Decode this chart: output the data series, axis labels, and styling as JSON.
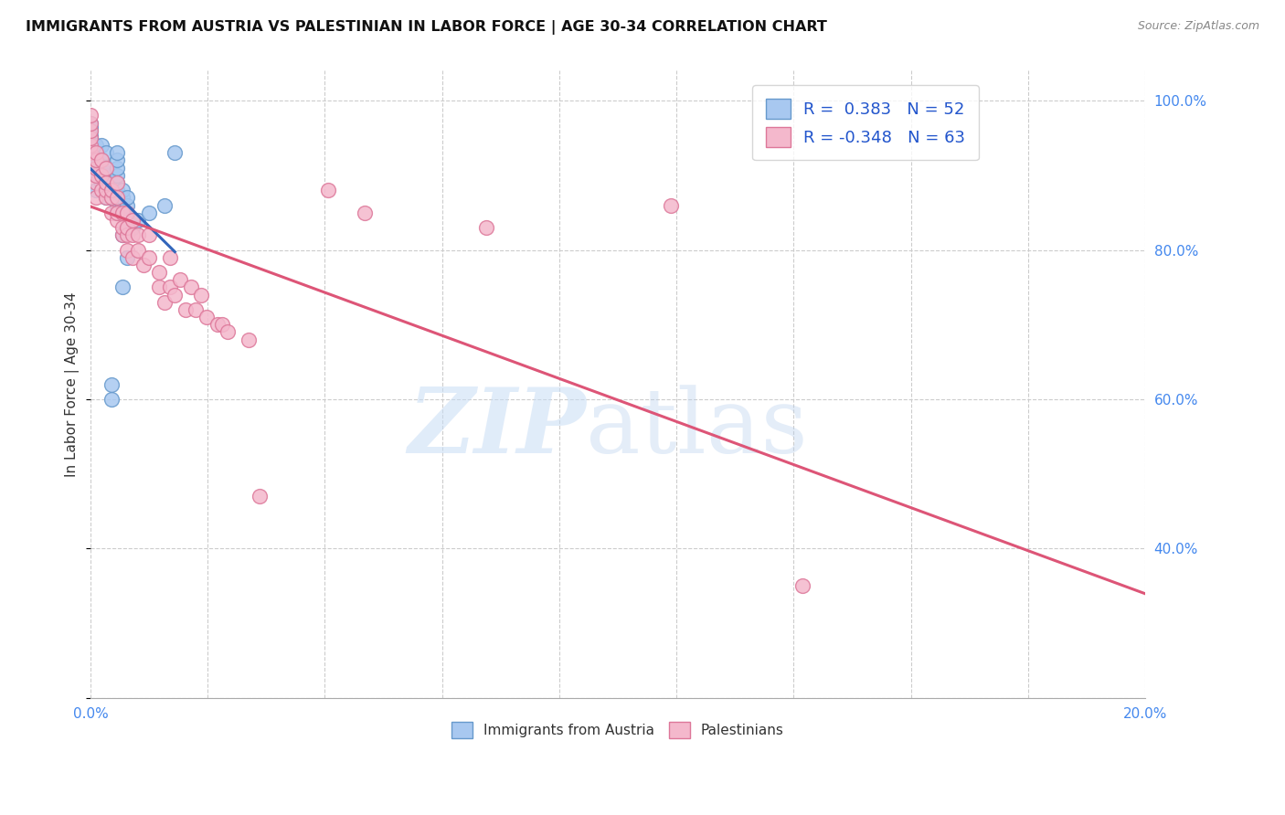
{
  "title": "IMMIGRANTS FROM AUSTRIA VS PALESTINIAN IN LABOR FORCE | AGE 30-34 CORRELATION CHART",
  "source": "Source: ZipAtlas.com",
  "ylabel": "In Labor Force | Age 30-34",
  "xmin": 0.0,
  "xmax": 0.2,
  "ymin": 0.2,
  "ymax": 1.04,
  "austria_color": "#a8c8f0",
  "austria_edge": "#6699cc",
  "palestinian_color": "#f4b8cc",
  "palestinian_edge": "#dd7799",
  "austria_R": 0.383,
  "austria_N": 52,
  "palestinian_R": -0.348,
  "palestinian_N": 63,
  "legend_label_austria": "Immigrants from Austria",
  "legend_label_palestinian": "Palestinians",
  "austria_x": [
    0.0,
    0.0,
    0.0,
    0.0,
    0.0,
    0.0,
    0.0,
    0.0,
    0.001,
    0.001,
    0.001,
    0.001,
    0.001,
    0.001,
    0.002,
    0.002,
    0.002,
    0.002,
    0.003,
    0.003,
    0.003,
    0.003,
    0.003,
    0.003,
    0.004,
    0.004,
    0.004,
    0.004,
    0.005,
    0.005,
    0.005,
    0.005,
    0.005,
    0.005,
    0.005,
    0.005,
    0.005,
    0.006,
    0.006,
    0.006,
    0.006,
    0.006,
    0.006,
    0.007,
    0.007,
    0.007,
    0.007,
    0.008,
    0.009,
    0.011,
    0.014,
    0.016
  ],
  "austria_y": [
    0.91,
    0.93,
    0.94,
    0.95,
    0.953,
    0.96,
    0.965,
    0.97,
    0.88,
    0.9,
    0.902,
    0.92,
    0.923,
    0.94,
    0.89,
    0.91,
    0.92,
    0.94,
    0.87,
    0.88,
    0.89,
    0.9,
    0.91,
    0.93,
    0.6,
    0.62,
    0.87,
    0.89,
    0.85,
    0.86,
    0.87,
    0.88,
    0.89,
    0.9,
    0.91,
    0.92,
    0.93,
    0.75,
    0.82,
    0.85,
    0.86,
    0.87,
    0.88,
    0.79,
    0.83,
    0.86,
    0.87,
    0.83,
    0.84,
    0.85,
    0.86,
    0.93
  ],
  "palestinian_x": [
    0.0,
    0.0,
    0.0,
    0.0,
    0.0,
    0.0,
    0.001,
    0.001,
    0.001,
    0.001,
    0.001,
    0.001,
    0.002,
    0.002,
    0.002,
    0.003,
    0.003,
    0.003,
    0.003,
    0.004,
    0.004,
    0.004,
    0.005,
    0.005,
    0.005,
    0.005,
    0.006,
    0.006,
    0.006,
    0.007,
    0.007,
    0.007,
    0.007,
    0.008,
    0.008,
    0.008,
    0.009,
    0.009,
    0.01,
    0.011,
    0.011,
    0.013,
    0.013,
    0.014,
    0.015,
    0.015,
    0.016,
    0.017,
    0.018,
    0.019,
    0.02,
    0.021,
    0.022,
    0.024,
    0.025,
    0.026,
    0.03,
    0.032,
    0.045,
    0.052,
    0.075,
    0.11,
    0.135
  ],
  "palestinian_y": [
    0.93,
    0.94,
    0.95,
    0.96,
    0.97,
    0.98,
    0.87,
    0.89,
    0.9,
    0.91,
    0.92,
    0.93,
    0.88,
    0.9,
    0.92,
    0.87,
    0.88,
    0.89,
    0.91,
    0.85,
    0.87,
    0.88,
    0.84,
    0.85,
    0.87,
    0.89,
    0.82,
    0.83,
    0.85,
    0.8,
    0.82,
    0.83,
    0.85,
    0.79,
    0.82,
    0.84,
    0.8,
    0.82,
    0.78,
    0.79,
    0.82,
    0.75,
    0.77,
    0.73,
    0.75,
    0.79,
    0.74,
    0.76,
    0.72,
    0.75,
    0.72,
    0.74,
    0.71,
    0.7,
    0.7,
    0.69,
    0.68,
    0.47,
    0.88,
    0.85,
    0.83,
    0.86,
    0.35
  ]
}
